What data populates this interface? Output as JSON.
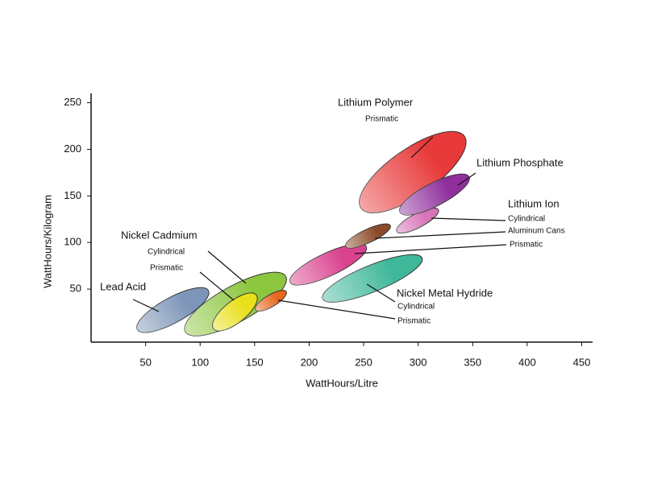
{
  "chart_data": {
    "type": "ellipse-regions",
    "x_label": "WattHours/Litre",
    "y_label": "WattHours/Kilogram",
    "xlim": [
      0,
      460
    ],
    "ylim": [
      0,
      260
    ],
    "xticks": [
      50,
      100,
      150,
      200,
      250,
      300,
      350,
      400,
      450
    ],
    "yticks": [
      50,
      100,
      150,
      200,
      250
    ],
    "regions": [
      {
        "color": "#7d95b8",
        "x": [
          40,
          110
        ],
        "y": [
          5,
          50
        ]
      },
      {
        "color": "#8cc63f",
        "x": [
          83,
          182
        ],
        "y": [
          2,
          66
        ]
      },
      {
        "color": "#e8e01a",
        "x": [
          111,
          153
        ],
        "y": [
          6,
          45
        ]
      },
      {
        "color": "#e8651e",
        "x": [
          150,
          180
        ],
        "y": [
          27,
          48
        ]
      },
      {
        "color": "#d9428f",
        "x": [
          180,
          255
        ],
        "y": [
          56,
          97
        ]
      },
      {
        "color": "#8a4a2a",
        "x": [
          232,
          276
        ],
        "y": [
          95,
          119
        ]
      },
      {
        "color": "#d874b8",
        "x": [
          279,
          320
        ],
        "y": [
          111,
          136
        ]
      },
      {
        "color": "#e83a3a",
        "x": [
          244,
          346
        ],
        "y": [
          134,
          217
        ]
      },
      {
        "color": "#8e2f9c",
        "x": [
          281,
          349
        ],
        "y": [
          131,
          172
        ]
      },
      {
        "color": "#3fb89a",
        "x": [
          209,
          307
        ],
        "y": [
          38,
          85
        ]
      }
    ],
    "labels": [
      "Lithium Polymer",
      "Prismatic",
      "Lithium Phosphate",
      "Lithium Ion",
      "Cylindrical",
      "Aluminum Cans",
      "Prismatic",
      "Nickel Cadmium",
      "Cylindrical",
      "Prismatic",
      "Lead Acid",
      "Nickel Metal Hydride",
      "Cylindrical",
      "Prismatic"
    ]
  }
}
